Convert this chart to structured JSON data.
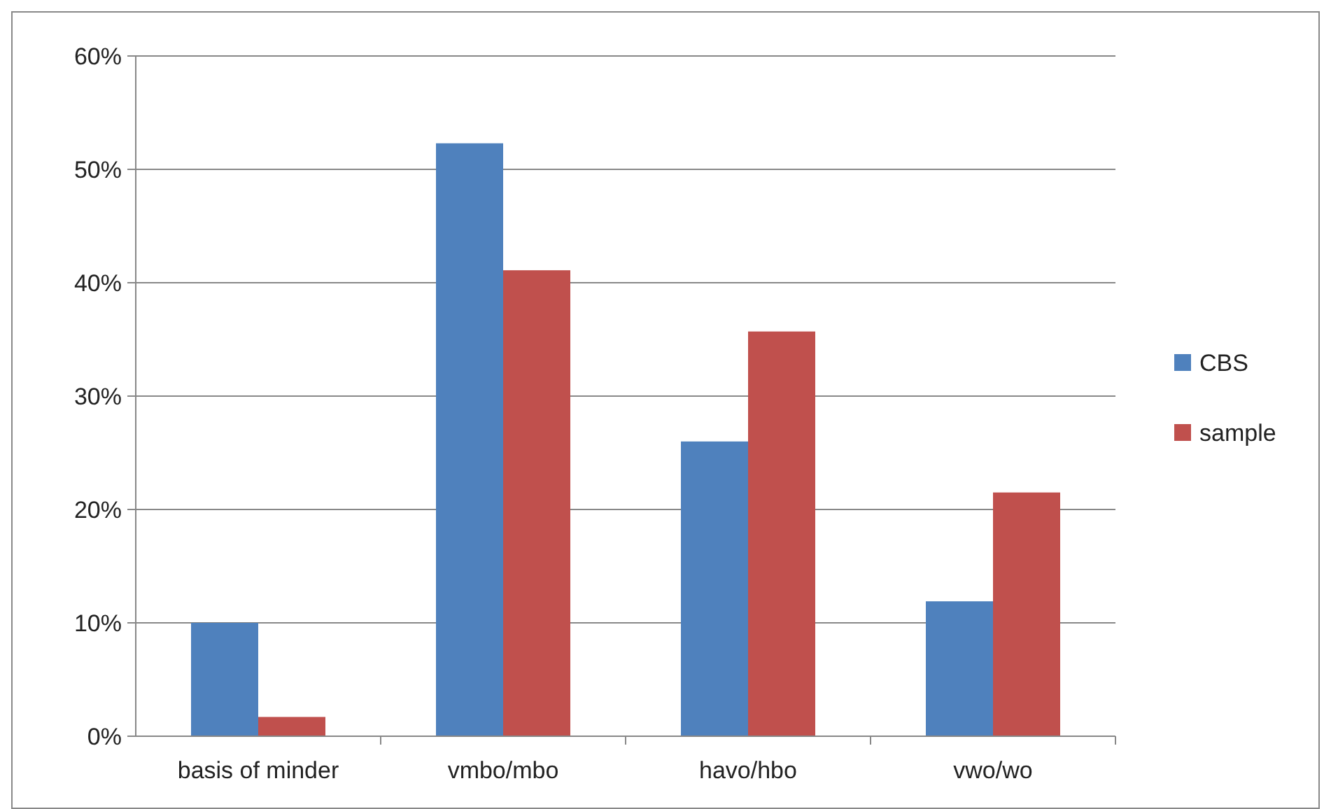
{
  "chart_data": {
    "type": "bar",
    "categories": [
      "basis of minder",
      "vmbo/mbo",
      "havo/hbo",
      "vwo/wo"
    ],
    "series": [
      {
        "name": "CBS",
        "color": "#4f81bd",
        "values": [
          10,
          52.3,
          26,
          11.9
        ]
      },
      {
        "name": "sample",
        "color": "#c0504d",
        "values": [
          1.7,
          41.1,
          35.7,
          21.5
        ]
      }
    ],
    "ylim": [
      0,
      60
    ],
    "yticks": [
      {
        "value": 0,
        "label": "0%"
      },
      {
        "value": 10,
        "label": "10%"
      },
      {
        "value": 20,
        "label": "20%"
      },
      {
        "value": 30,
        "label": "30%"
      },
      {
        "value": 40,
        "label": "40%"
      },
      {
        "value": 50,
        "label": "50%"
      },
      {
        "value": 60,
        "label": "60%"
      }
    ],
    "grid": "y",
    "legend": "right"
  }
}
